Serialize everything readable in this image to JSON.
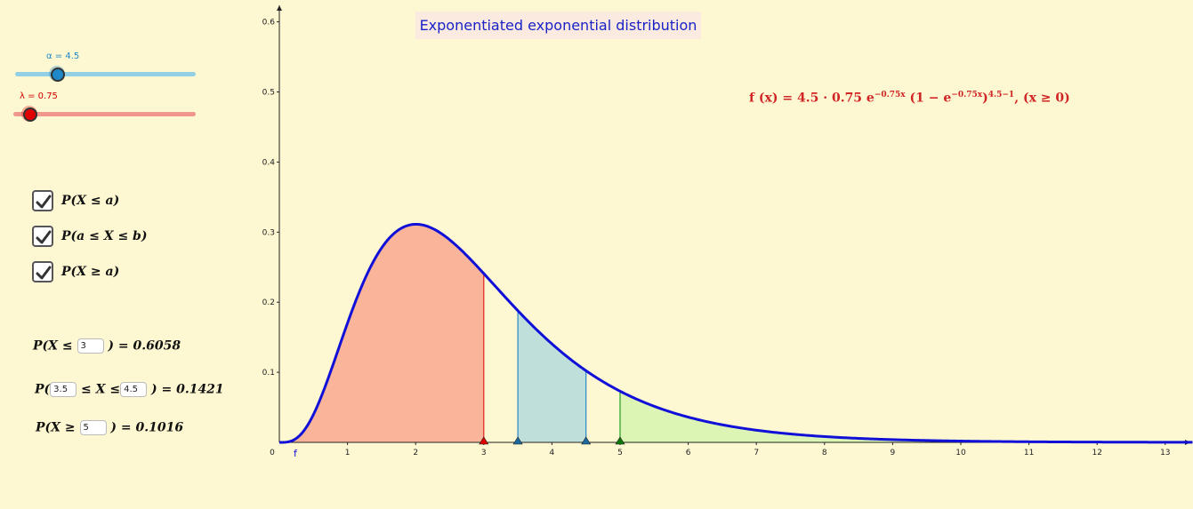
{
  "title": "Exponentiated exponential distribution",
  "colors": {
    "background": "#fdf7d2",
    "curve": "#1010d8",
    "area_left": "#f9b49a",
    "area_middle": "#bfe0da",
    "area_right": "#dcf5b4",
    "alpha_slider": "#1e88c8",
    "lambda_slider": "#e00000"
  },
  "sliders": {
    "alpha": {
      "label": "α = 4.5",
      "value": 4.5,
      "min": 0,
      "max": 15
    },
    "lambda": {
      "label": "λ = 0.75",
      "value": 0.75,
      "min": 0,
      "max": 10
    }
  },
  "formula": {
    "lhs": "f (x) = 4.5 · 0.75 e",
    "exp1": "−0.75x",
    "mid": " (1 − e",
    "exp2": "−0.75x",
    "close": ")",
    "exp3": "4.5−1",
    "tail": ",    (x ≥ 0)"
  },
  "checkboxes": [
    {
      "label": "P(X ≤ a)",
      "checked": true
    },
    {
      "label": "P(a ≤ X ≤ b)",
      "checked": true
    },
    {
      "label": "P(X ≥ a)",
      "checked": true
    }
  ],
  "probabilities": {
    "left": {
      "prefix": "P(X ≤",
      "input": "3",
      "result": ") = 0.6058"
    },
    "between": {
      "prefix": "P(",
      "input_a": "3.5",
      "mid": "≤ X ≤",
      "input_b": "4.5",
      "result": ") = 0.1421"
    },
    "right": {
      "prefix": "P(X ≥",
      "input": "5",
      "result": ") = 0.1016"
    }
  },
  "graph": {
    "function_label": "f",
    "origin_label": "0",
    "x_ticks": [
      "1",
      "2",
      "3",
      "4",
      "5",
      "6",
      "7",
      "8",
      "9",
      "10",
      "11",
      "12",
      "13"
    ],
    "y_ticks": [
      "0.1",
      "0.2",
      "0.3",
      "0.4",
      "0.5",
      "0.6"
    ]
  },
  "chart_data": {
    "type": "area",
    "alpha": 4.5,
    "lambda": 0.75,
    "xlim": [
      0,
      13.4
    ],
    "ylim": [
      0,
      0.6
    ],
    "left_bound": 3,
    "middle_bounds": [
      3.5,
      4.5
    ],
    "right_bound": 5,
    "grid": false
  }
}
